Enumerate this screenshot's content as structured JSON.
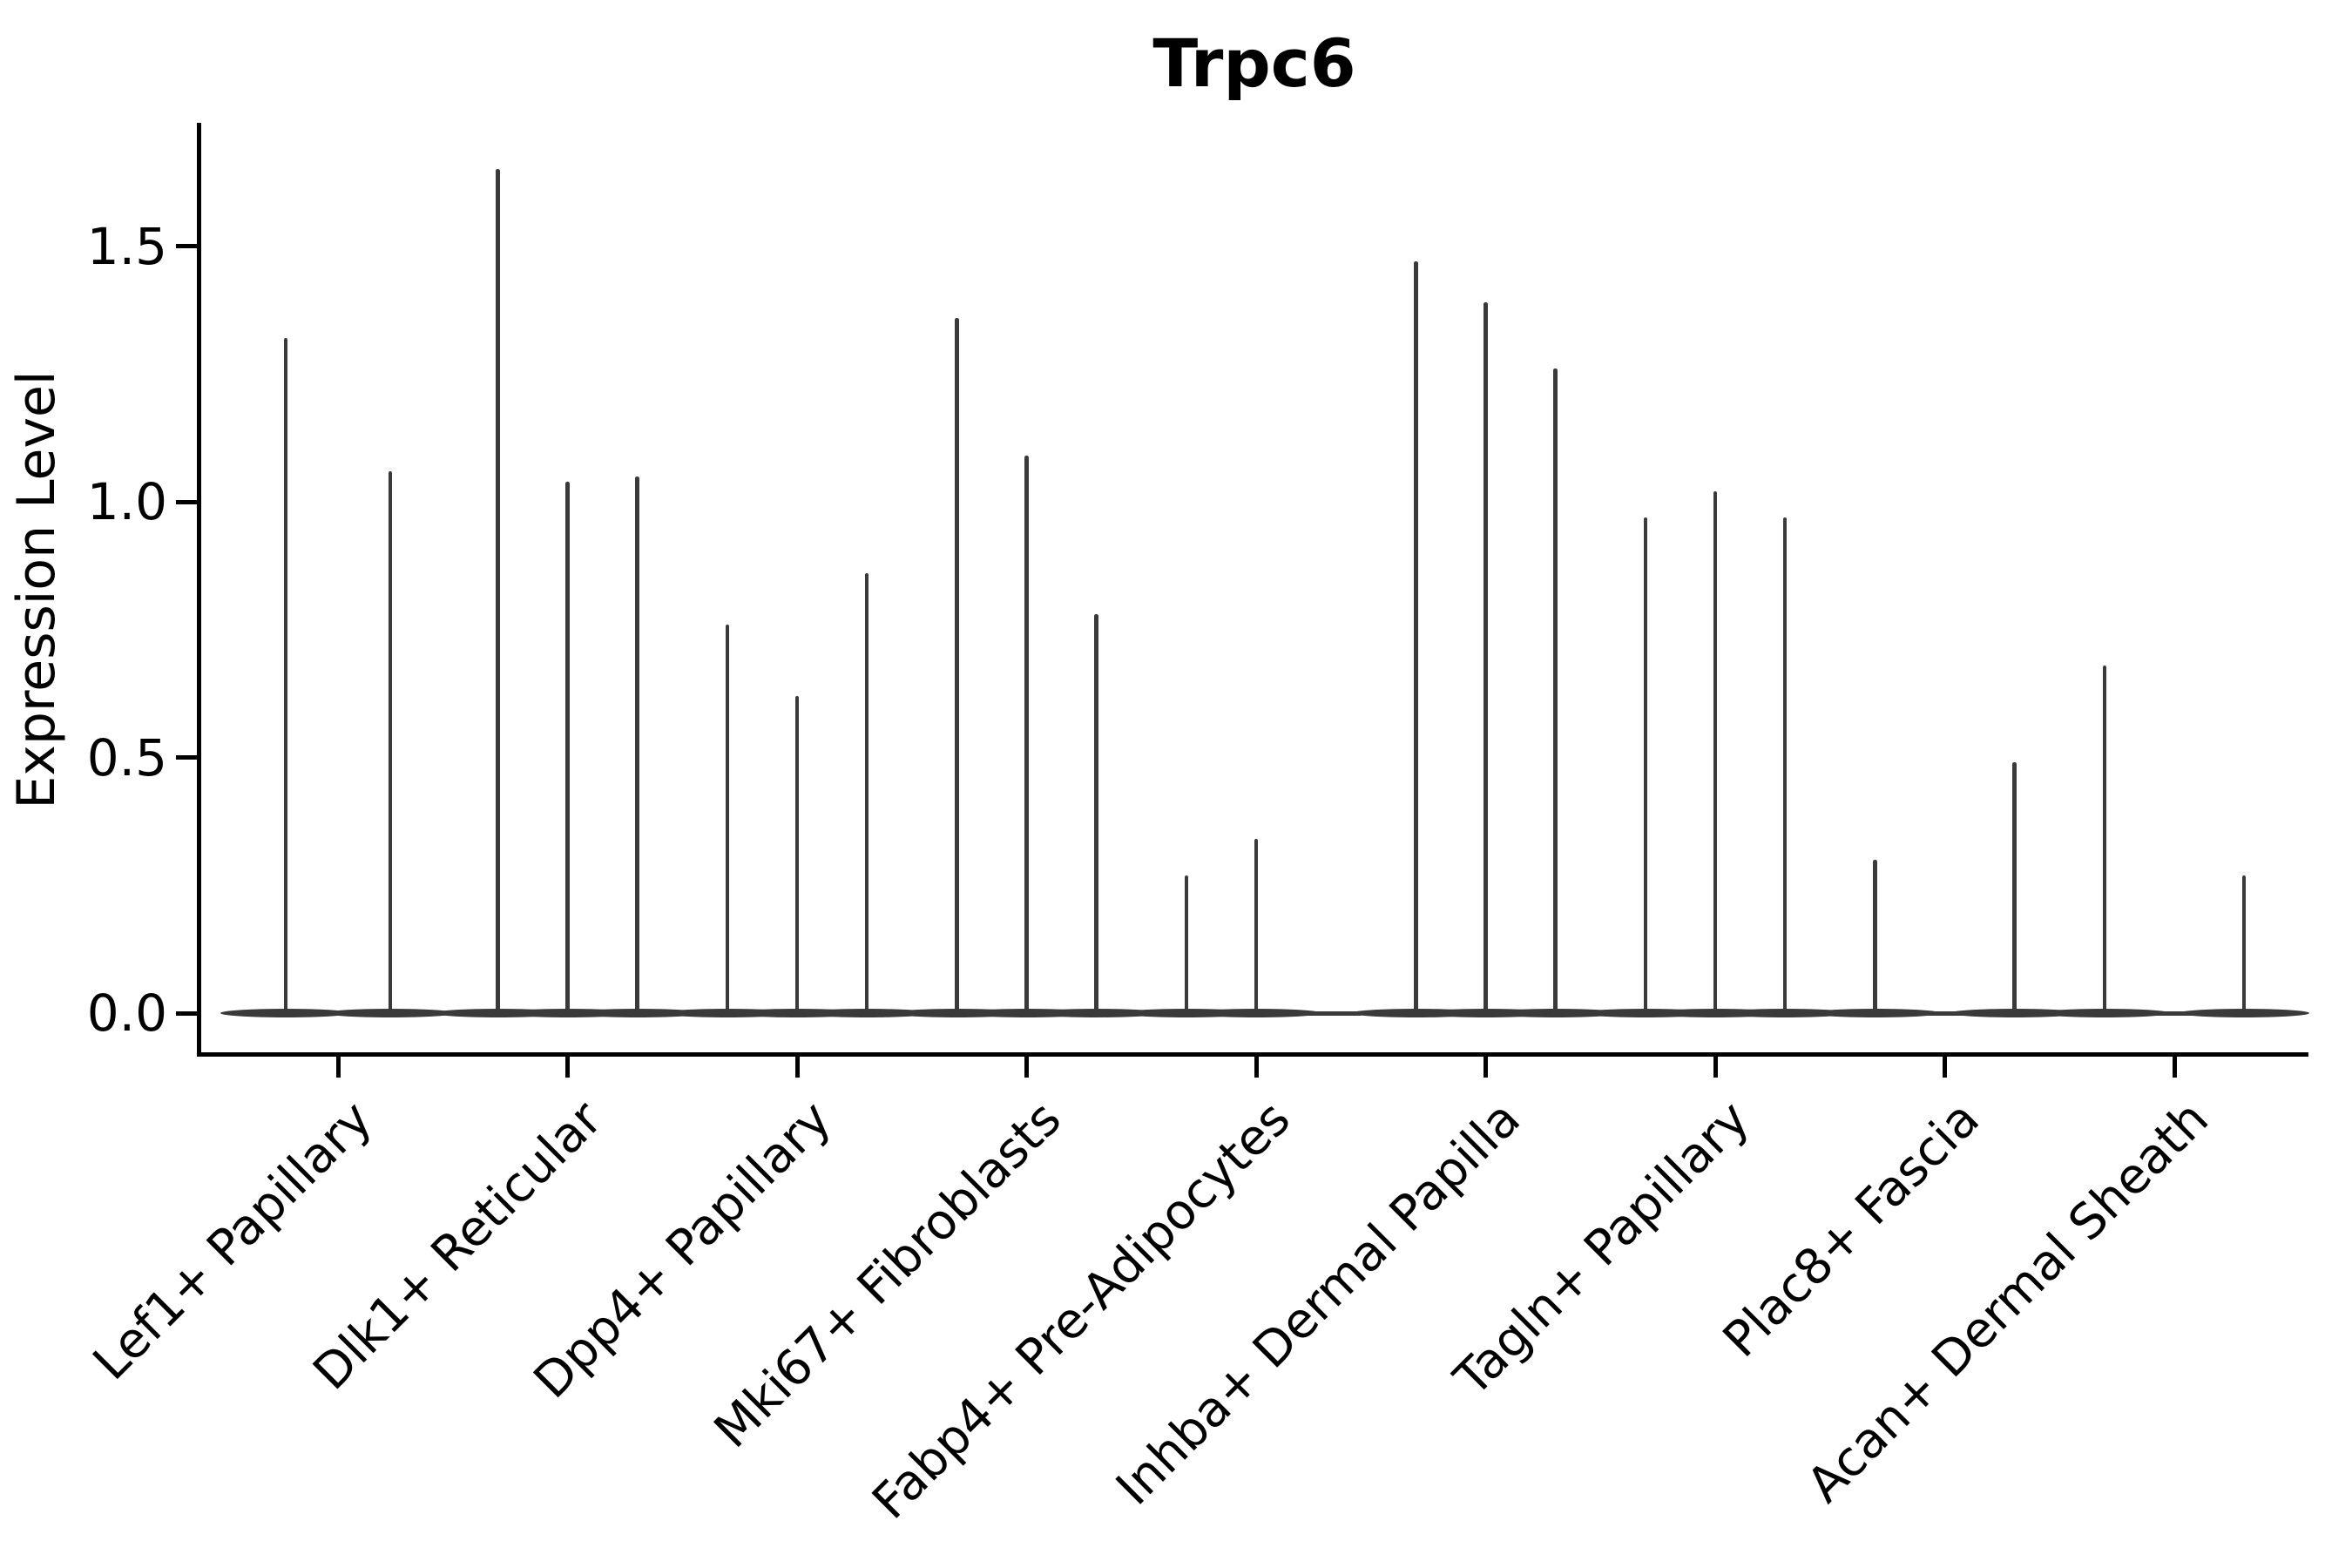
{
  "title": "Trpc6",
  "y_axis": {
    "label": "Expression Level",
    "ticks": [
      "0.0",
      "0.5",
      "1.0",
      "1.5"
    ]
  },
  "chart_data": {
    "type": "violin",
    "title": "Trpc6",
    "xlabel": "",
    "ylabel": "Expression Level",
    "ylim": [
      0,
      1.74
    ],
    "y_ticks": [
      0.0,
      0.5,
      1.0,
      1.5
    ],
    "grid": false,
    "legend": "none",
    "colors": {
      "violin": "#3a3a3a",
      "axis": "#000000",
      "text": "#000000",
      "background": "#ffffff"
    },
    "categories": [
      "Lef1+ Papillary",
      "Dlk1+ Reticular",
      "Dpp4+ Papillary",
      "Mki67+ Fibroblasts",
      "Fabp4+ Pre-Adipocytes",
      "Inhba+ Dermal Papilla",
      "Tagln+ Papillary",
      "Plac8+ Fascia",
      "Acan+ Dermal Sheath"
    ],
    "series": [
      {
        "category": "Lef1+ Papillary",
        "violins": [
          {
            "offset": -60,
            "peak": 1.32
          },
          {
            "offset": 60,
            "peak": 1.06
          }
        ]
      },
      {
        "category": "Dlk1+ Reticular",
        "violins": [
          {
            "offset": -80,
            "peak": 1.65
          },
          {
            "offset": 0,
            "peak": 1.04
          },
          {
            "offset": 80,
            "peak": 1.05
          }
        ]
      },
      {
        "category": "Dpp4+ Papillary",
        "violins": [
          {
            "offset": -80,
            "peak": 0.76
          },
          {
            "offset": 0,
            "peak": 0.62
          },
          {
            "offset": 80,
            "peak": 0.86
          }
        ]
      },
      {
        "category": "Mki67+ Fibroblasts",
        "violins": [
          {
            "offset": -80,
            "peak": 1.36
          },
          {
            "offset": 0,
            "peak": 1.09
          },
          {
            "offset": 80,
            "peak": 0.78
          }
        ]
      },
      {
        "category": "Fabp4+ Pre-Adipocytes",
        "violins": [
          {
            "offset": -80,
            "peak": 0.27
          },
          {
            "offset": 0,
            "peak": 0.34
          }
        ]
      },
      {
        "category": "Inhba+ Dermal Papilla",
        "violins": [
          {
            "offset": -80,
            "peak": 1.47
          },
          {
            "offset": 0,
            "peak": 1.39
          },
          {
            "offset": 80,
            "peak": 1.26
          }
        ]
      },
      {
        "category": "Tagln+ Papillary",
        "violins": [
          {
            "offset": -80,
            "peak": 0.97
          },
          {
            "offset": 0,
            "peak": 1.02
          },
          {
            "offset": 80,
            "peak": 0.97
          }
        ]
      },
      {
        "category": "Plac8+ Fascia",
        "violins": [
          {
            "offset": -80,
            "peak": 0.3
          },
          {
            "offset": 80,
            "peak": 0.49
          }
        ]
      },
      {
        "category": "Acan+ Dermal Sheath",
        "violins": [
          {
            "offset": -80,
            "peak": 0.68
          },
          {
            "offset": 80,
            "peak": 0.27
          }
        ]
      }
    ],
    "baseline_value": 0.0
  }
}
